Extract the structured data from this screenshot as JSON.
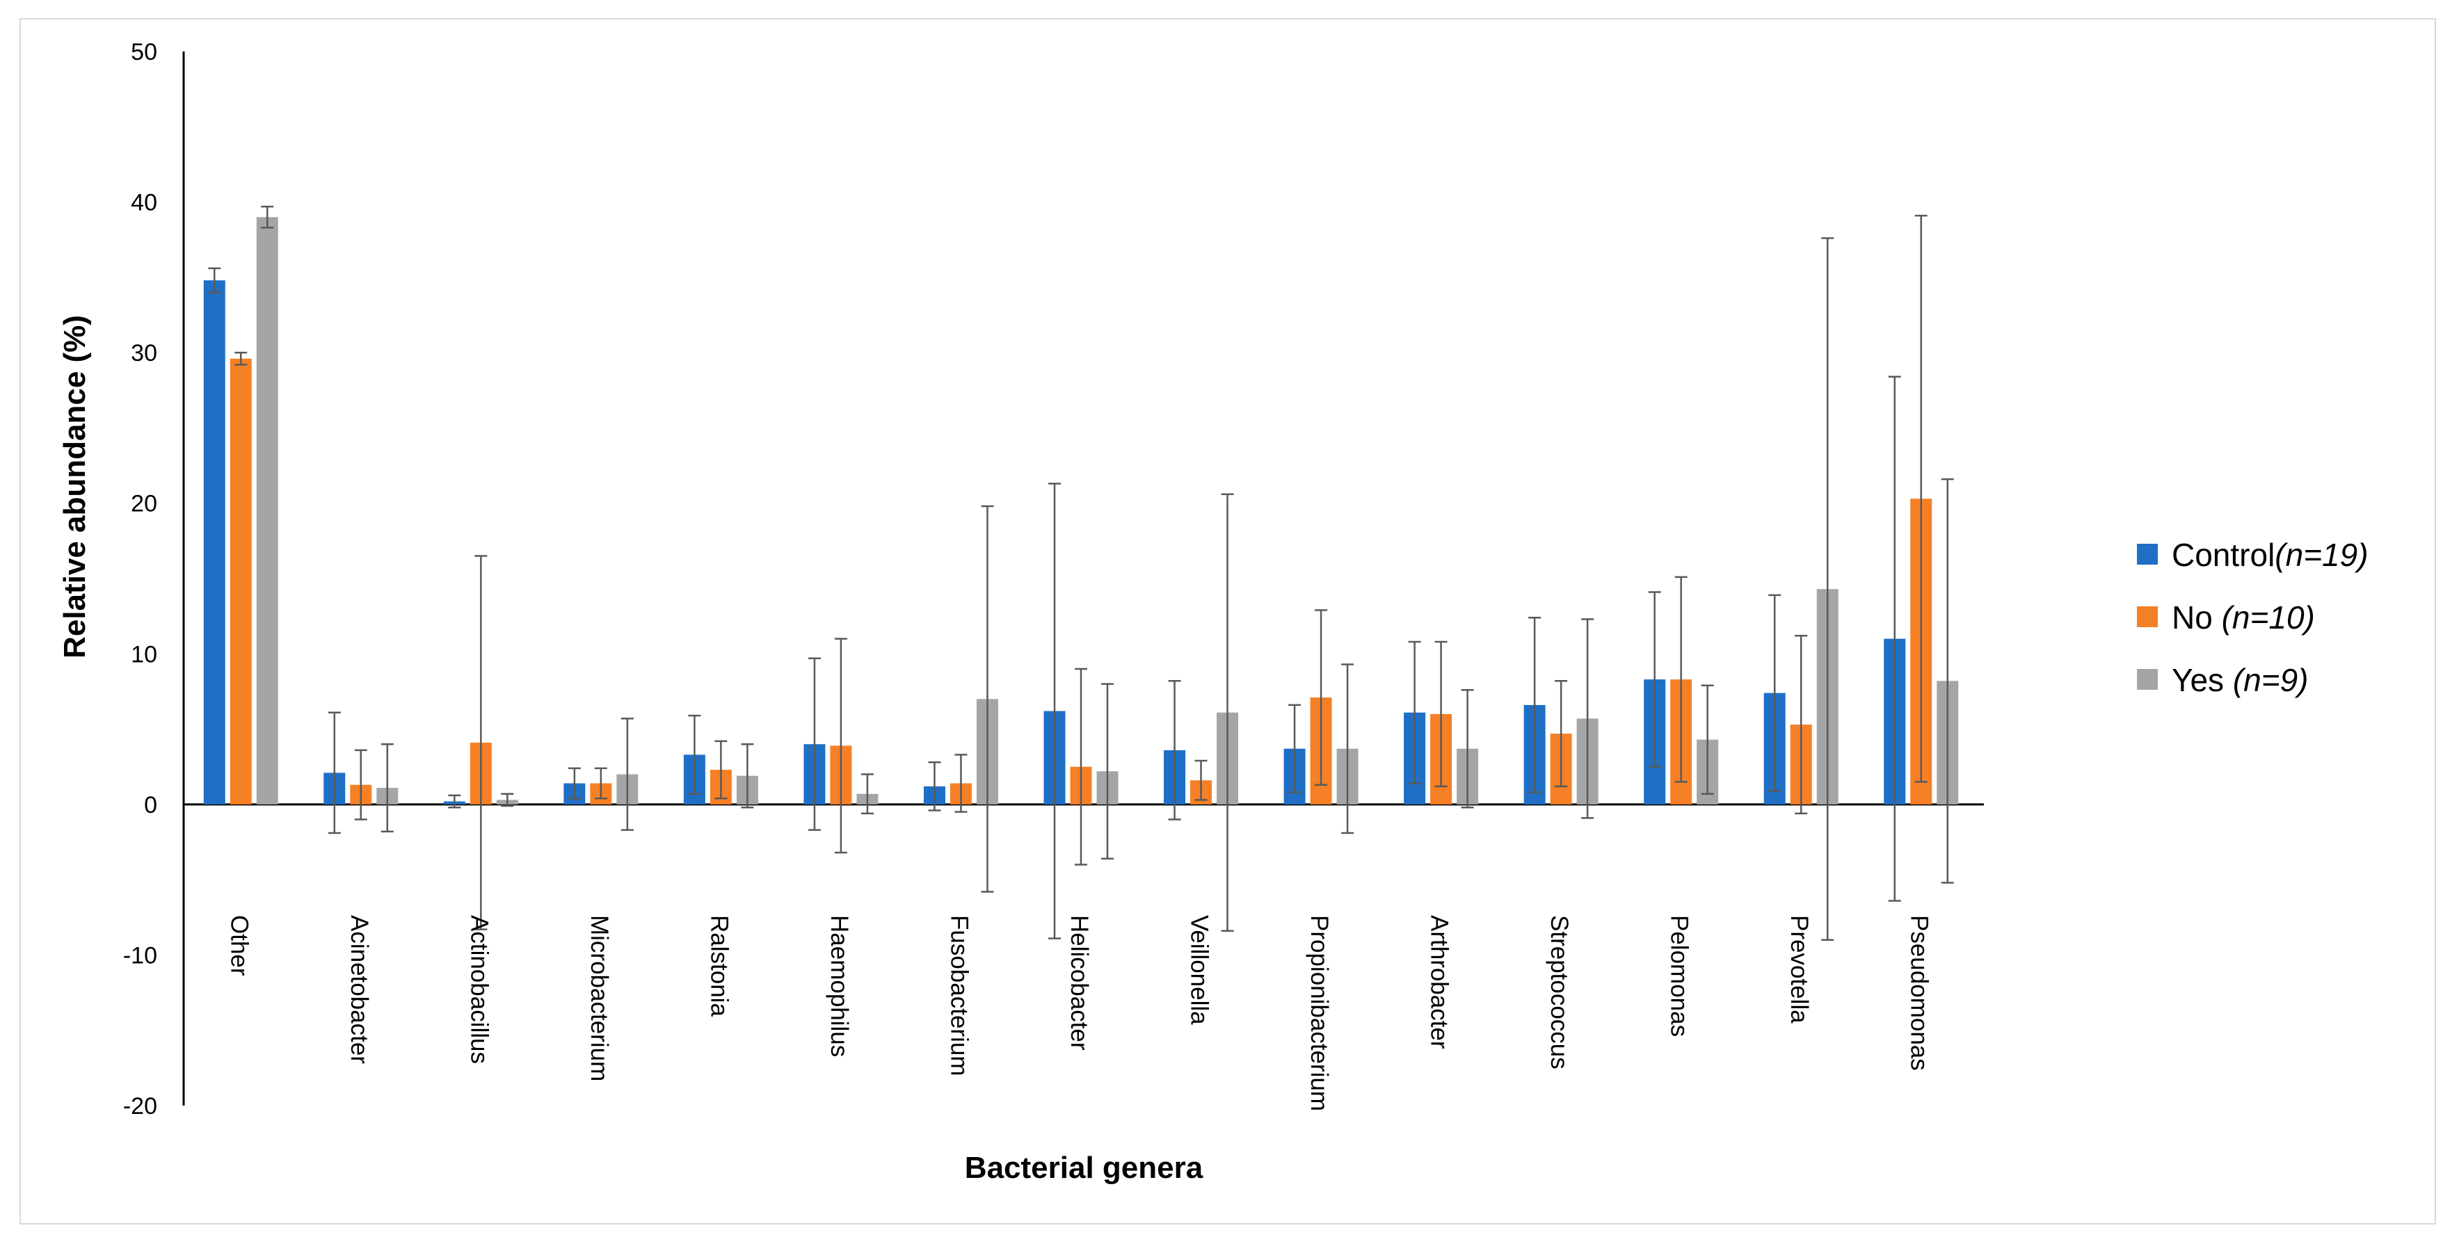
{
  "chart_data": {
    "type": "bar",
    "title": "",
    "xlabel": "Bacterial genera",
    "ylabel": "Relative abundance (%)",
    "ylim": [
      -20,
      50
    ],
    "yticks": [
      -20,
      -10,
      0,
      10,
      20,
      30,
      40,
      50
    ],
    "ytick_labels": [
      "-20",
      "-10",
      "0",
      "10",
      "20",
      "30",
      "40",
      "50"
    ],
    "grid": false,
    "legend_position": "right",
    "categories": [
      "Other",
      "Acinetobacter",
      "Actinobacillus",
      "Microbacterium",
      "Ralstonia",
      "Haemophilus",
      "Fusobacterium",
      "Helicobacter",
      "Veillonella",
      "Propionibacterium",
      "Arthrobacter",
      "Streptococcus",
      "Pelomonas",
      "Prevotella",
      "Pseudomonas"
    ],
    "series": [
      {
        "name": "Control",
        "n_label": "(n=19)",
        "color": "#1f6fc5",
        "values": [
          34.8,
          2.1,
          0.2,
          1.4,
          3.3,
          4.0,
          1.2,
          6.2,
          3.6,
          3.7,
          6.1,
          6.6,
          8.3,
          7.4,
          11.0
        ],
        "errors": [
          0.8,
          4.0,
          0.4,
          1.0,
          2.6,
          5.7,
          1.6,
          15.1,
          4.6,
          2.9,
          4.7,
          5.8,
          5.8,
          6.5,
          17.4
        ]
      },
      {
        "name": "No",
        "n_label": "(n=10)",
        "color": "#f58025",
        "values": [
          29.6,
          1.3,
          4.1,
          1.4,
          2.3,
          3.9,
          1.4,
          2.5,
          1.6,
          7.1,
          6.0,
          4.7,
          8.3,
          5.3,
          20.3
        ],
        "errors": [
          0.4,
          2.3,
          12.4,
          1.0,
          1.9,
          7.1,
          1.9,
          6.5,
          1.3,
          5.8,
          4.8,
          3.5,
          6.8,
          5.9,
          18.8
        ]
      },
      {
        "name": "Yes",
        "n_label": "(n=9)",
        "color": "#a5a5a5",
        "values": [
          39.0,
          1.1,
          0.3,
          2.0,
          1.9,
          0.7,
          7.0,
          2.2,
          6.1,
          3.7,
          3.7,
          5.7,
          4.3,
          14.3,
          8.2
        ],
        "errors": [
          0.7,
          2.9,
          0.4,
          3.7,
          2.1,
          1.3,
          12.8,
          5.8,
          14.5,
          5.6,
          3.9,
          6.6,
          3.6,
          23.3,
          13.4
        ]
      }
    ]
  }
}
